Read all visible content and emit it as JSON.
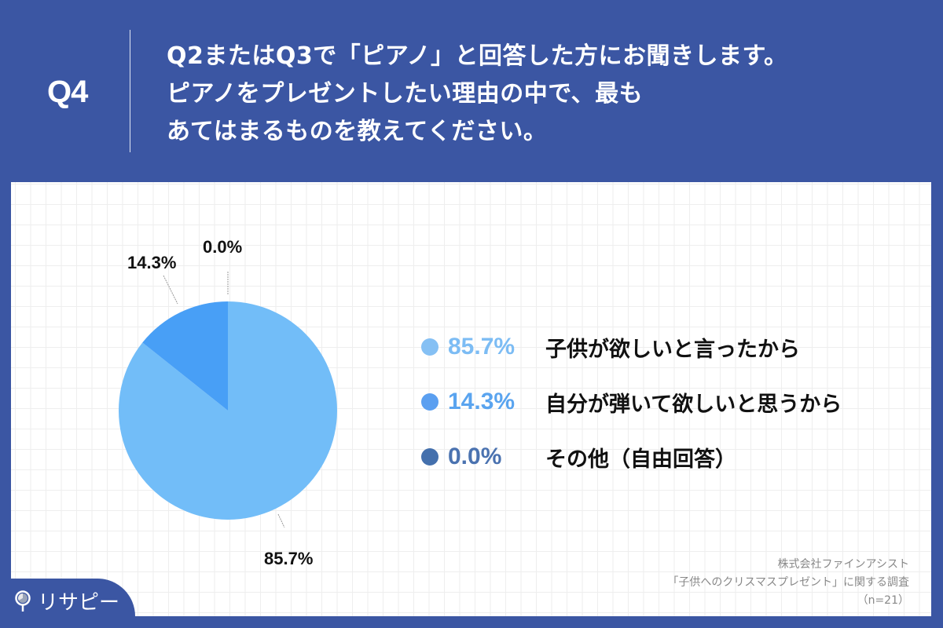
{
  "header": {
    "question_number": "Q4",
    "question_lines": [
      "Q2またはQ3で「ピアノ」と回答した方にお聞きします。",
      "ピアノをプレゼントしたい理由の中で、最も",
      "あてはまるものを教えてください。"
    ]
  },
  "colors": {
    "background": "#3b56a3",
    "slice_1": "#72bdf8",
    "slice_2": "#489ff6",
    "slice_3": "#4472b4",
    "legend_pct_1": "#7cbcf4",
    "legend_pct_2": "#5aa4ef",
    "legend_pct_3": "#4a72b0"
  },
  "chart_data": {
    "type": "pie",
    "title": "Q2またはQ3で「ピアノ」と回答した方にお聞きします。ピアノをプレゼントしたい理由の中で、最もあてはまるものを教えてください。",
    "categories": [
      "子供が欲しいと言ったから",
      "自分が弾いて欲しいと思うから",
      "その他（自由回答）"
    ],
    "values": [
      85.7,
      14.3,
      0.0
    ],
    "unit": "%",
    "slice_labels": [
      "85.7%",
      "14.3%",
      "0.0%"
    ],
    "start_angle": "12 o'clock, clockwise",
    "legend_position": "right",
    "sample_size": "n=21"
  },
  "legend": [
    {
      "pct": "85.7%",
      "label": "子供が欲しいと言ったから"
    },
    {
      "pct": "14.3%",
      "label": "自分が弾いて欲しいと思うから"
    },
    {
      "pct": "0.0%",
      "label": "その他（自由回答）"
    }
  ],
  "source": {
    "company": "株式会社ファインアシスト",
    "survey": "「子供へのクリスマスプレゼント」に関する調査",
    "n": "（n=21）"
  },
  "logo": {
    "text": "リサピー",
    "icon": "map-pin-pie-icon"
  }
}
